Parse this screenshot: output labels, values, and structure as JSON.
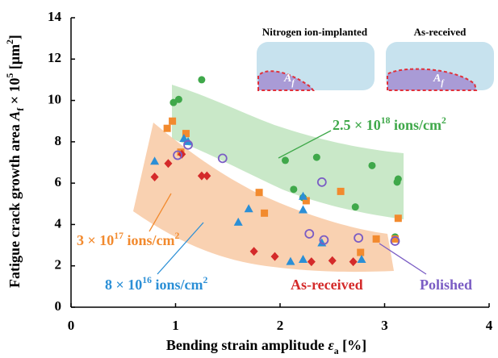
{
  "chart_data": {
    "type": "scatter",
    "ylabel": [
      "Fatigue crack growth area ",
      "A",
      "f",
      " × 10",
      "5",
      " [μm",
      "2",
      "]"
    ],
    "xlabel": [
      "Bending strain amplitude ",
      "ε",
      "a",
      " [%]"
    ],
    "xlim": [
      0,
      4
    ],
    "xticks": [
      0,
      1,
      2,
      3,
      4
    ],
    "ylim": [
      0,
      14
    ],
    "yticks": [
      0,
      2,
      4,
      6,
      8,
      10,
      12,
      14
    ],
    "inset": {
      "labels": [
        "Nitrogen ion-implanted",
        "As-received"
      ],
      "area_symbol": "A",
      "area_subscript": "f"
    },
    "series": [
      {
        "name": [
          "2.5 × 10",
          "18",
          " ions/cm",
          "2"
        ],
        "color": "#3fa84a",
        "marker": "circle",
        "x": [
          0.98,
          1.03,
          1.25,
          2.05,
          2.13,
          2.22,
          2.35,
          2.72,
          2.88,
          3.1,
          3.12,
          3.13
        ],
        "values": [
          9.9,
          10.05,
          11.0,
          7.1,
          5.7,
          5.3,
          7.25,
          4.85,
          6.85,
          3.4,
          6.05,
          6.2
        ]
      },
      {
        "name": [
          "3 × 10",
          "17",
          " ions/cm",
          "2"
        ],
        "color": "#f28a2e",
        "marker": "square",
        "x": [
          0.92,
          0.97,
          1.05,
          1.1,
          1.8,
          1.85,
          2.25,
          2.58,
          2.77,
          2.92,
          3.1,
          3.13
        ],
        "values": [
          8.65,
          9.0,
          7.5,
          8.4,
          5.55,
          4.55,
          5.15,
          5.6,
          2.65,
          3.3,
          3.3,
          4.3
        ]
      },
      {
        "name": [
          "8 × 10",
          "16",
          " ions/cm",
          "2"
        ],
        "color": "#2b8fd6",
        "marker": "triangle",
        "x": [
          0.8,
          1.08,
          1.12,
          1.6,
          1.7,
          2.1,
          2.22,
          2.22,
          2.22,
          2.4,
          2.78
        ],
        "values": [
          7.05,
          8.15,
          8.0,
          4.1,
          4.75,
          2.2,
          2.3,
          4.7,
          5.35,
          3.1,
          2.3
        ]
      },
      {
        "name": [
          "As-received"
        ],
        "color": "#d42a2a",
        "marker": "diamond",
        "x": [
          0.8,
          0.93,
          1.06,
          1.25,
          1.3,
          1.75,
          1.95,
          2.3,
          2.5,
          2.7
        ],
        "values": [
          6.3,
          6.95,
          7.4,
          6.35,
          6.35,
          2.7,
          2.45,
          2.2,
          2.25,
          2.2
        ]
      },
      {
        "name": [
          "Polished"
        ],
        "color": "#7a5cc4",
        "marker": "open-circle",
        "x": [
          1.02,
          1.12,
          1.45,
          2.28,
          2.4,
          2.42,
          2.75,
          3.1
        ],
        "values": [
          7.35,
          7.85,
          7.2,
          3.55,
          6.05,
          3.25,
          3.35,
          3.2
        ]
      }
    ]
  }
}
